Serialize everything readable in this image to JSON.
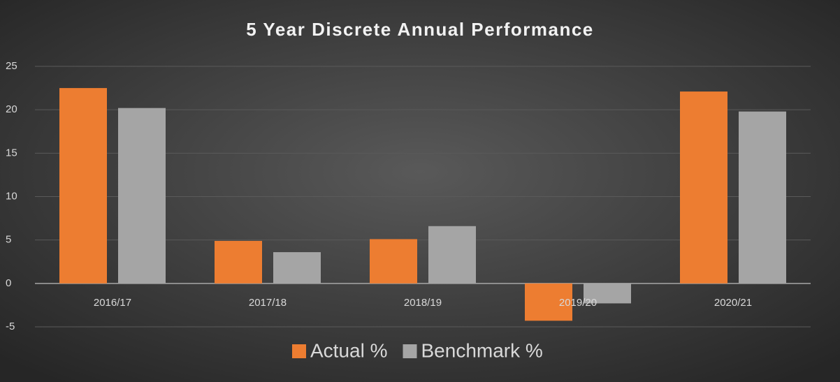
{
  "chart_data": {
    "type": "bar",
    "title": "5 Year Discrete Annual Performance",
    "categories": [
      "2016/17",
      "2017/18",
      "2018/19",
      "2019/20",
      "2020/21"
    ],
    "series": [
      {
        "name": "Actual %",
        "color": "#ed7d31",
        "values": [
          22.5,
          4.9,
          5.1,
          -4.3,
          22.1
        ]
      },
      {
        "name": "Benchmark %",
        "color": "#a5a5a5",
        "values": [
          20.2,
          3.6,
          6.6,
          -2.3,
          19.8
        ]
      }
    ],
    "ylim": [
      -5,
      25
    ],
    "yticks": [
      -5,
      0,
      5,
      10,
      15,
      20,
      25
    ],
    "grid": true,
    "legend": "bottom"
  }
}
